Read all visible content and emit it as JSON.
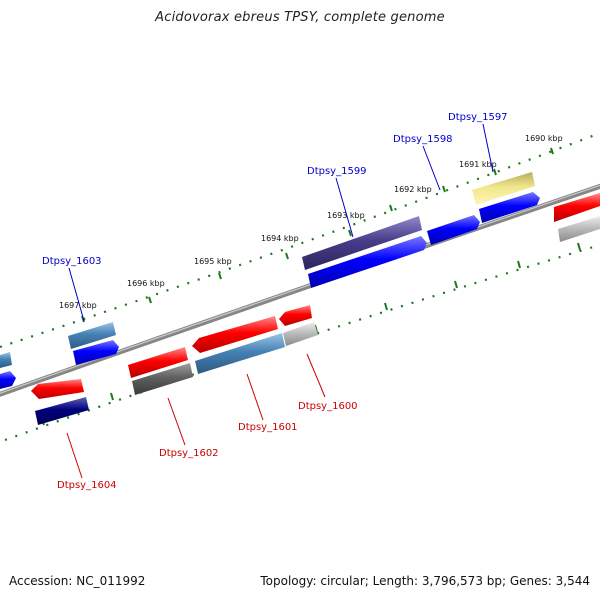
{
  "title": "Acidovorax ebreus TPSY, complete genome",
  "footer": {
    "accession": "Accession: NC_011992",
    "summary": "Topology: circular; Length: 3,796,573 bp; Genes: 3,544"
  },
  "ticks": [
    "1690 kbp",
    "1691 kbp",
    "1692 kbp",
    "1693 kbp",
    "1694 kbp",
    "1695 kbp",
    "1696 kbp",
    "1697 kbp"
  ],
  "genes_forward": [
    "Dtpsy_1597",
    "Dtpsy_1598",
    "Dtpsy_1599",
    "Dtpsy_1603"
  ],
  "genes_reverse": [
    "Dtpsy_1600",
    "Dtpsy_1601",
    "Dtpsy_1602",
    "Dtpsy_1604"
  ],
  "colors": {
    "blue_label": "#0000cc",
    "red_label": "#cc0000",
    "tick": "#1a7a1a",
    "backbone": "#888888"
  }
}
